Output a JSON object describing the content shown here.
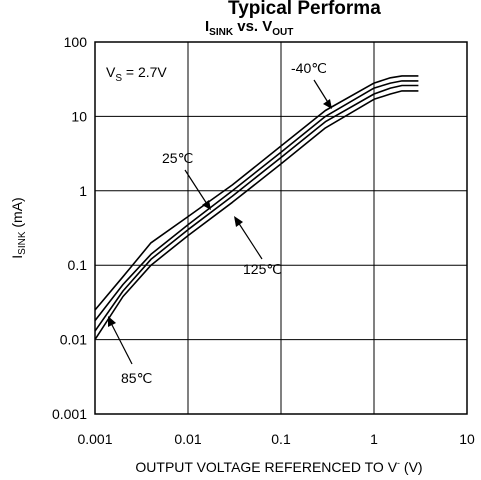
{
  "page": {
    "header_text": "Typical Performa"
  },
  "chart_data": {
    "type": "line",
    "title": {
      "main": "I",
      "sub": "SINK",
      "mid": " vs. V",
      "sub2": "OUT"
    },
    "xlabel": {
      "main": "OUTPUT VOLTAGE REFERENCED TO V",
      "sup": "-",
      "tail": " (V)"
    },
    "ylabel": {
      "main": "I",
      "sub": "SINK",
      "tail": " (mA)"
    },
    "x_scale": "log",
    "y_scale": "log",
    "xlim": [
      0.001,
      10
    ],
    "ylim": [
      0.001,
      100
    ],
    "x_ticks": [
      "0.001",
      "0.01",
      "0.1",
      "1",
      "10"
    ],
    "y_ticks": [
      "100",
      "10",
      "1",
      "0.1",
      "0.01",
      "0.001"
    ],
    "grid": true,
    "annotations": {
      "vs": {
        "main": "V",
        "sub": "S",
        "tail": " = 2.7V"
      },
      "labels": [
        "-40℃",
        "25℃",
        "125℃",
        "85℃"
      ]
    },
    "series": [
      {
        "name": "-40℃",
        "x": [
          0.001,
          0.002,
          0.004,
          0.01,
          0.03,
          0.1,
          0.3,
          1,
          1.5,
          2,
          3
        ],
        "y": [
          0.025,
          0.07,
          0.2,
          0.45,
          1.2,
          4,
          12,
          28,
          33,
          35,
          35
        ]
      },
      {
        "name": "25℃",
        "x": [
          0.001,
          0.002,
          0.004,
          0.01,
          0.03,
          0.1,
          0.3,
          1,
          1.5,
          2,
          3
        ],
        "y": [
          0.018,
          0.055,
          0.14,
          0.35,
          1.0,
          3.3,
          10,
          24,
          28,
          30,
          30
        ]
      },
      {
        "name": "85℃",
        "x": [
          0.001,
          0.002,
          0.004,
          0.01,
          0.03,
          0.1,
          0.3,
          1,
          1.5,
          2,
          3
        ],
        "y": [
          0.013,
          0.045,
          0.12,
          0.3,
          0.85,
          2.8,
          8.5,
          20,
          24,
          26,
          26
        ]
      },
      {
        "name": "125℃",
        "x": [
          0.001,
          0.002,
          0.004,
          0.01,
          0.03,
          0.1,
          0.3,
          1,
          1.5,
          2,
          3
        ],
        "y": [
          0.01,
          0.038,
          0.1,
          0.25,
          0.7,
          2.3,
          7,
          17,
          20,
          22,
          22
        ]
      }
    ]
  }
}
